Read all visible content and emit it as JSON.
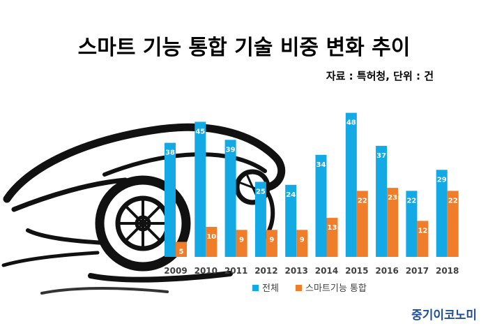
{
  "chart_data": {
    "type": "bar",
    "title": "스마트 기능 통합 기술 비중 변화 추이",
    "source_note": "자료 : 특허청, 단위 : 건",
    "categories": [
      "2009",
      "2010",
      "2011",
      "2012",
      "2013",
      "2014",
      "2015",
      "2016",
      "2017",
      "2018"
    ],
    "series": [
      {
        "name": "전체",
        "color": "#12a9e4",
        "values": [
          38,
          45,
          39,
          25,
          24,
          34,
          48,
          37,
          22,
          29
        ]
      },
      {
        "name": "스마트기능 통합",
        "color": "#ef7d2a",
        "values": [
          5,
          10,
          9,
          9,
          9,
          13,
          22,
          23,
          12,
          22
        ]
      }
    ],
    "ylim": [
      0,
      50
    ],
    "grid": false,
    "legend_position": "bottom"
  },
  "brand": "중기이코노미",
  "decoration": {
    "background_art": "car-silhouette-icon"
  }
}
